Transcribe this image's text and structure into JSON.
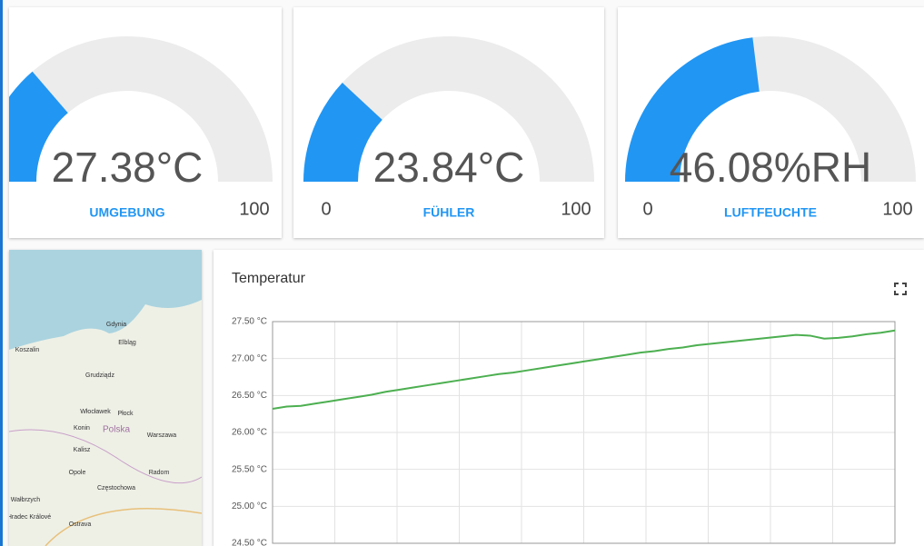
{
  "gauges": [
    {
      "value": 27.38,
      "unit": "°C",
      "label": "UMGEBUNG",
      "min": 0,
      "max": 100
    },
    {
      "value": 23.84,
      "unit": "°C",
      "label": "FÜHLER",
      "min": 0,
      "max": 100
    },
    {
      "value": 46.08,
      "unit": "%RH",
      "label": "LUFTFEUCHTE",
      "min": 0,
      "max": 100
    }
  ],
  "map": {
    "labels": [
      "Gdynia",
      "Elbląg",
      "Koszalin",
      "Grudziądz",
      "Włocławek",
      "Płock",
      "Konin",
      "Polska",
      "Warszawa",
      "Kalisz",
      "Radom",
      "Opole",
      "Częstochowa",
      "Wałbrzych",
      "Ostrava",
      "Hradec Králové"
    ]
  },
  "chart_data": {
    "type": "line",
    "title": "Temperatur",
    "ylim": [
      24.5,
      27.5
    ],
    "yticks": [
      {
        "value": 24.5,
        "label": "24.50 °C"
      },
      {
        "value": 25.0,
        "label": "25.00 °C"
      },
      {
        "value": 25.5,
        "label": "25.50 °C"
      },
      {
        "value": 26.0,
        "label": "26.00 °C"
      },
      {
        "value": 26.5,
        "label": "26.50 °C"
      },
      {
        "value": 27.0,
        "label": "27.00 °C"
      },
      {
        "value": 27.5,
        "label": "27.50 °C"
      }
    ],
    "grid": true,
    "series": [
      {
        "name": "Temperatur",
        "color": "#4caf50",
        "values": [
          26.32,
          26.35,
          26.36,
          26.39,
          26.42,
          26.45,
          26.48,
          26.51,
          26.55,
          26.58,
          26.61,
          26.64,
          26.67,
          26.7,
          26.73,
          26.76,
          26.79,
          26.81,
          26.84,
          26.87,
          26.9,
          26.93,
          26.96,
          26.99,
          27.02,
          27.05,
          27.08,
          27.1,
          27.13,
          27.15,
          27.18,
          27.2,
          27.22,
          27.24,
          27.26,
          27.28,
          27.3,
          27.32,
          27.31,
          27.27,
          27.28,
          27.3,
          27.33,
          27.35,
          27.38
        ]
      }
    ]
  }
}
